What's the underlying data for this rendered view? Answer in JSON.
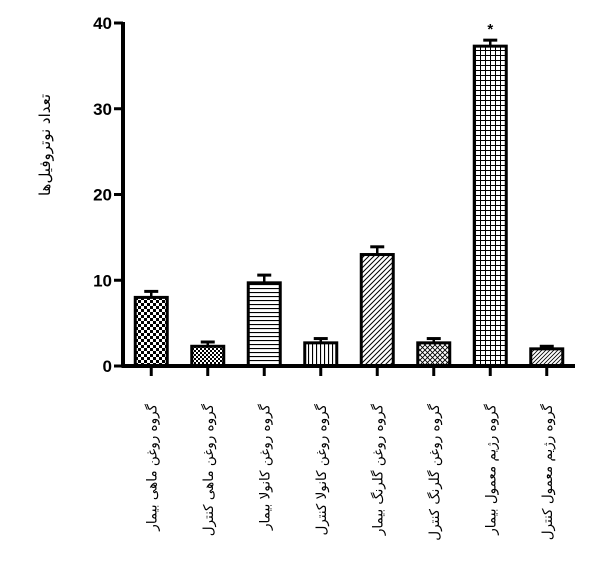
{
  "chart_data": {
    "type": "bar",
    "ylabel": "تعداد نوتروفیل‌ها",
    "ylim": [
      0,
      40
    ],
    "yticks": [
      "0",
      "10",
      "20",
      "30",
      "40"
    ],
    "categories": [
      "گروه روغن ماهی بیمار",
      "گروه روغن ماهی کنترل",
      "گروه روغن کانولا بیمار",
      "گروه روغن کانولا کنترل",
      "گروه روغن گلرنگ بیمار",
      "گروه روغن گلرنگ کنترل",
      "گروه رژیم معمول بیمار",
      "گروه رژیم معمول کنترل"
    ],
    "values": [
      8.0,
      2.3,
      9.7,
      2.7,
      13.0,
      2.7,
      37.3,
      2.0
    ],
    "errors": [
      0.7,
      0.5,
      0.9,
      0.5,
      0.9,
      0.5,
      0.7,
      0.3
    ],
    "patterns": [
      "checker",
      "checker-small",
      "horizontal",
      "vertical",
      "diagonal",
      "cross-diagonal",
      "grid",
      "diagonal-fine"
    ],
    "annotations": [
      {
        "category_index": 6,
        "text": "*"
      }
    ],
    "grid": false,
    "legend": "none"
  }
}
